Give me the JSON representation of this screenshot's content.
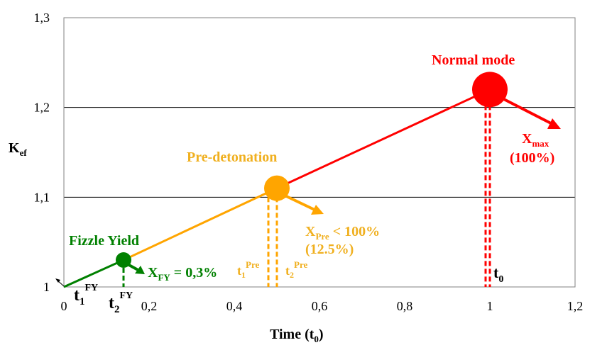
{
  "chart_data": {
    "type": "line",
    "xlabel": "Time (t",
    "xlabel_sub": "0",
    "xlabel_close": ")",
    "ylabel": "K",
    "ylabel_sub": "ef",
    "xlim": [
      0,
      1.2
    ],
    "ylim": [
      1.0,
      1.3
    ],
    "grid": "horizontal",
    "x_ticks": [
      {
        "value": 0,
        "label": "0"
      },
      {
        "value": 0.2,
        "label": "0,2"
      },
      {
        "value": 0.4,
        "label": "0,4"
      },
      {
        "value": 0.6,
        "label": "0,6"
      },
      {
        "value": 0.8,
        "label": "0,8"
      },
      {
        "value": 1.0,
        "label": "1"
      },
      {
        "value": 1.2,
        "label": "1,2"
      }
    ],
    "y_ticks": [
      {
        "value": 1.0,
        "label": "1"
      },
      {
        "value": 1.1,
        "label": "1,1"
      },
      {
        "value": 1.2,
        "label": "1,2"
      },
      {
        "value": 1.3,
        "label": "1,3"
      }
    ],
    "series": [
      {
        "color": "#008000",
        "x": [
          0,
          0.14
        ],
        "y": [
          1.0,
          1.03
        ]
      },
      {
        "color": "#ffa500",
        "x": [
          0.14,
          0.5
        ],
        "y": [
          1.03,
          1.11
        ]
      },
      {
        "color": "#ff0000",
        "x": [
          0.5,
          1.0
        ],
        "y": [
          1.11,
          1.22
        ]
      }
    ],
    "points": [
      {
        "name": "fizzle-point",
        "x": 0.14,
        "y": 1.03,
        "color": "#008000",
        "size": "small"
      },
      {
        "name": "predetonation-point",
        "x": 0.5,
        "y": 1.11,
        "color": "#ffa500",
        "size": "medium"
      },
      {
        "name": "normal-point",
        "x": 1.0,
        "y": 1.22,
        "color": "#ff0000",
        "size": "large"
      }
    ],
    "markers": [
      {
        "x": 0.14,
        "y_top": 1.03,
        "color": "#008000"
      },
      {
        "x": 0.48,
        "y_top": 1.1,
        "color": "#ffa500"
      },
      {
        "x": 0.5,
        "y_top": 1.1,
        "color": "#ffa500"
      },
      {
        "x": 0.99,
        "y_top": 1.22,
        "color": "#ff0000"
      },
      {
        "x": 1.0,
        "y_top": 1.22,
        "color": "#ff0000"
      }
    ],
    "annotations": {
      "fizzle_title": "Fizzle Yield",
      "fizzle_x": "X",
      "fizzle_x_sub": "FY",
      "fizzle_x_value": " = 0,3%",
      "t1_fy": "t",
      "t1_fy_sub": "1",
      "t1_fy_sup": "FY",
      "t2_fy": "t",
      "t2_fy_sub": "2",
      "t2_fy_sup": "FY",
      "pre_title": "Pre-detonation",
      "pre_x": "X",
      "pre_x_sub": "Pre",
      "pre_x_value": " < 100%",
      "pre_percent": "(12.5%)",
      "t1_pre": "t",
      "t1_pre_sub": "1",
      "t1_pre_sup": "Pre",
      "t2_pre": "t",
      "t2_pre_sub": "2",
      "t2_pre_sup": "Pre",
      "normal_title": "Normal mode",
      "max_x": "X",
      "max_x_sub": "max",
      "max_percent": "(100%)",
      "t0": "t",
      "t0_sub": "0"
    },
    "colors": {
      "green": "#008000",
      "orange": "#ffa500",
      "red": "#ff0000",
      "label_orange": "#f0b020"
    }
  }
}
